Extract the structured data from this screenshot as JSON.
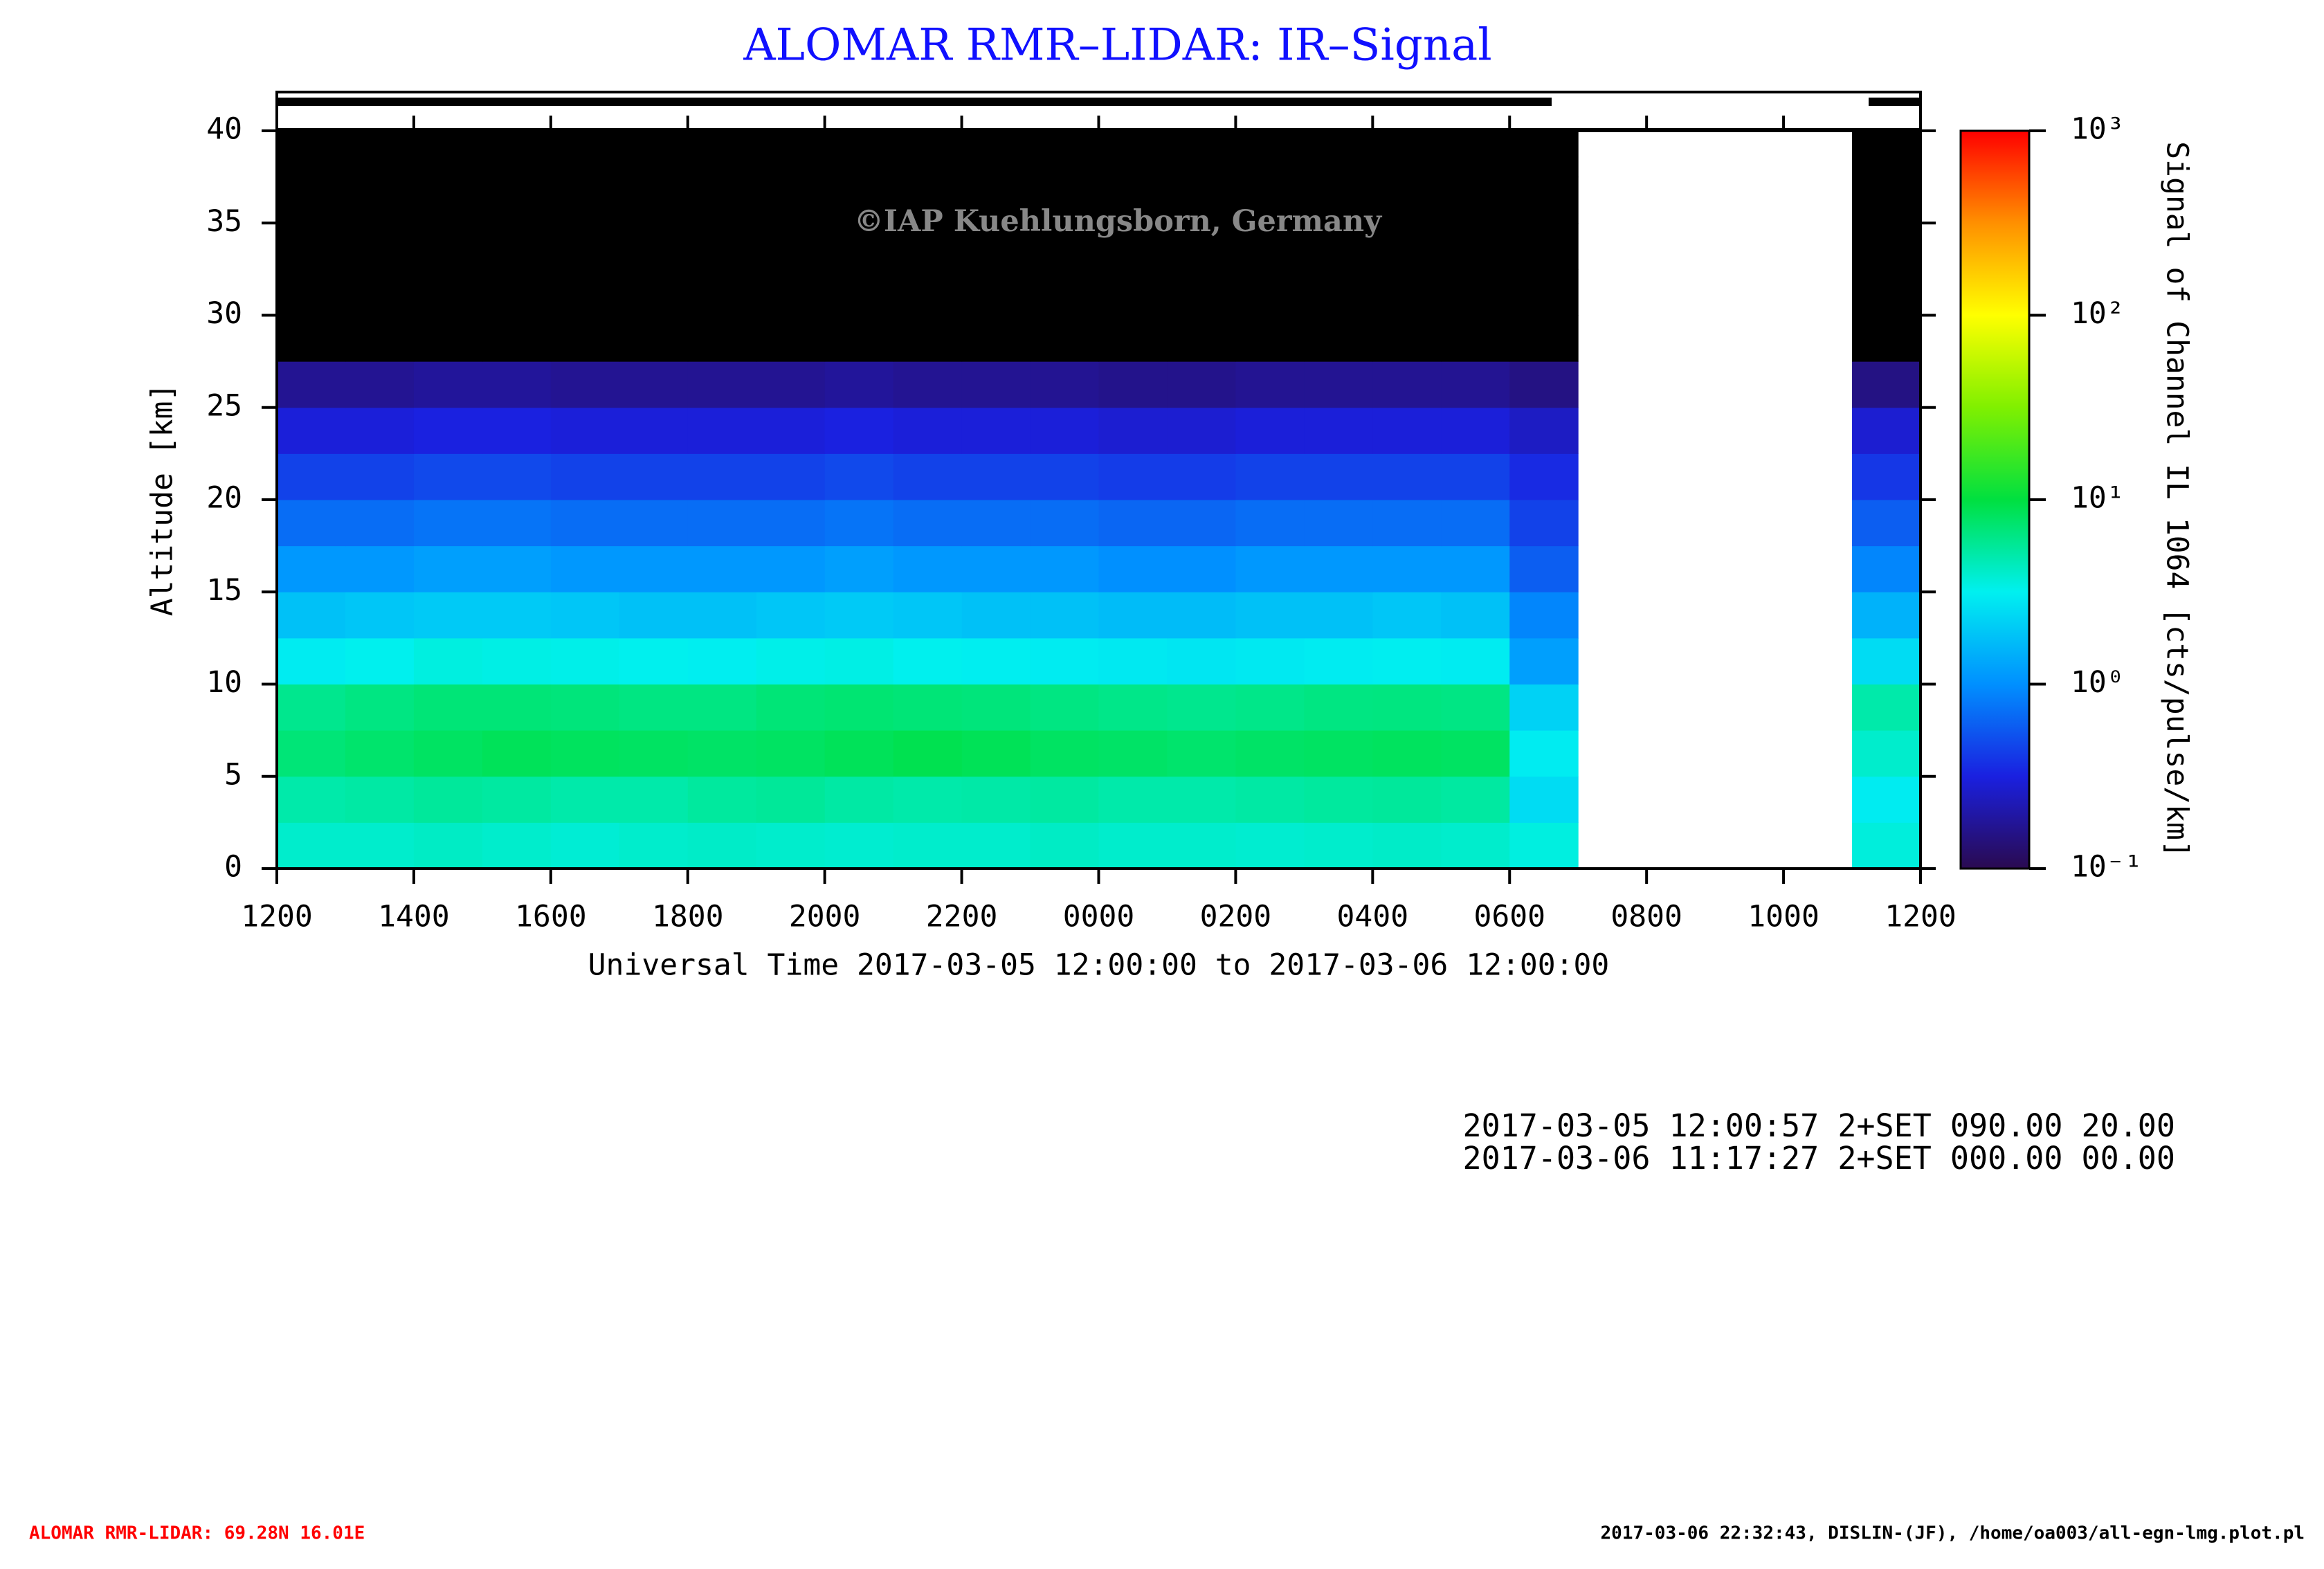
{
  "chart_data": {
    "type": "heatmap",
    "title": "ALOMAR RMR–LIDAR: IR–Signal",
    "watermark": "©IAP Kuehlungsborn, Germany",
    "x_label": "Universal Time 2017-03-05 12:00:00 to 2017-03-06 12:00:00",
    "y_label": "Altitude [km]",
    "colorbar_label": "Signal of Channel IL 1064 [cts/pulse/km]",
    "xlim": [
      0,
      24
    ],
    "xticks": [
      {
        "value": 0,
        "label": "1200"
      },
      {
        "value": 2,
        "label": "1400"
      },
      {
        "value": 4,
        "label": "1600"
      },
      {
        "value": 6,
        "label": "1800"
      },
      {
        "value": 8,
        "label": "2000"
      },
      {
        "value": 10,
        "label": "2200"
      },
      {
        "value": 12,
        "label": "0000"
      },
      {
        "value": 14,
        "label": "0200"
      },
      {
        "value": 16,
        "label": "0400"
      },
      {
        "value": 18,
        "label": "0600"
      },
      {
        "value": 20,
        "label": "0800"
      },
      {
        "value": 22,
        "label": "1000"
      },
      {
        "value": 24,
        "label": "1200"
      }
    ],
    "ylim": [
      0,
      40
    ],
    "yticks": [
      0,
      5,
      10,
      15,
      20,
      25,
      30,
      35,
      40
    ],
    "clim": [
      0.1,
      1000
    ],
    "log_color": true,
    "cticks": [
      {
        "value": 0.1,
        "label": "10⁻¹"
      },
      {
        "value": 1,
        "label": "10⁰"
      },
      {
        "value": 10,
        "label": "10¹"
      },
      {
        "value": 100,
        "label": "10²"
      },
      {
        "value": 1000,
        "label": "10³"
      }
    ],
    "colormap": [
      "#2a0a50",
      "#1a20e0",
      "#0090ff",
      "#00f0f0",
      "#00e040",
      "#80f000",
      "#ffff00",
      "#ff9000",
      "#ff0000"
    ],
    "under_color": "#000000",
    "xbins": [
      0,
      1,
      2,
      3,
      4,
      5,
      6,
      7,
      8,
      9,
      10,
      11,
      12,
      13,
      14,
      15,
      16,
      17,
      18,
      19,
      20,
      21,
      22,
      23,
      24
    ],
    "ybins": [
      0,
      2.5,
      5,
      7.5,
      10,
      12.5,
      15,
      17.5,
      20,
      22.5,
      25,
      27.5,
      30,
      32.5,
      35,
      37.5,
      40
    ],
    "z": [
      [
        4,
        4,
        4.2,
        4,
        3.8,
        4,
        4.1,
        4,
        3.9,
        4,
        4,
        4.2,
        4,
        4,
        3.9,
        4,
        4.1,
        4,
        3.5,
        null,
        null,
        null,
        null,
        3.6
      ],
      [
        5,
        5.2,
        5.5,
        5.3,
        5,
        5,
        5.4,
        5.6,
        5.2,
        5,
        5.1,
        5.3,
        5,
        5,
        5.2,
        5.4,
        5.5,
        5.3,
        2.5,
        null,
        null,
        null,
        null,
        3
      ],
      [
        7,
        7.5,
        8,
        8.5,
        8.2,
        8,
        7.8,
        8,
        8.5,
        9,
        8.6,
        8,
        7.8,
        7.5,
        7.8,
        8,
        8.2,
        8,
        3,
        null,
        null,
        null,
        null,
        4
      ],
      [
        6,
        6.5,
        7,
        7,
        6.8,
        6.5,
        6.5,
        7,
        7.2,
        7,
        6.8,
        6.5,
        6.2,
        6,
        6.2,
        6.5,
        6.6,
        6.4,
        2.2,
        null,
        null,
        null,
        null,
        5
      ],
      [
        3,
        3.2,
        3.5,
        3.4,
        3.3,
        3.2,
        3.1,
        3.3,
        3.4,
        3.2,
        3.1,
        3,
        2.9,
        2.8,
        2.9,
        3,
        3.1,
        3,
        1.2,
        null,
        null,
        null,
        null,
        2.5
      ],
      [
        1.8,
        1.9,
        2,
        2,
        1.9,
        1.8,
        1.8,
        1.9,
        2,
        1.9,
        1.8,
        1.8,
        1.7,
        1.7,
        1.8,
        1.8,
        1.9,
        1.8,
        0.9,
        null,
        null,
        null,
        null,
        1.5
      ],
      [
        1.1,
        1.1,
        1.2,
        1.2,
        1.1,
        1.1,
        1.1,
        1.1,
        1.2,
        1.1,
        1.1,
        1.1,
        1,
        1,
        1.1,
        1.1,
        1.1,
        1.1,
        0.6,
        null,
        null,
        null,
        null,
        0.9
      ],
      [
        0.7,
        0.7,
        0.75,
        0.75,
        0.7,
        0.7,
        0.7,
        0.7,
        0.75,
        0.7,
        0.7,
        0.7,
        0.65,
        0.65,
        0.7,
        0.7,
        0.7,
        0.7,
        0.45,
        null,
        null,
        null,
        null,
        0.6
      ],
      [
        0.45,
        0.45,
        0.48,
        0.48,
        0.45,
        0.45,
        0.45,
        0.45,
        0.48,
        0.45,
        0.45,
        0.45,
        0.42,
        0.42,
        0.45,
        0.45,
        0.45,
        0.45,
        0.35,
        null,
        null,
        null,
        null,
        0.4
      ],
      [
        0.3,
        0.3,
        0.32,
        0.32,
        0.3,
        0.3,
        0.3,
        0.3,
        0.32,
        0.3,
        0.3,
        0.3,
        0.28,
        0.28,
        0.3,
        0.3,
        0.3,
        0.3,
        0.25,
        null,
        null,
        null,
        null,
        0.28
      ],
      [
        0.17,
        0.17,
        0.18,
        0.18,
        0.17,
        0.17,
        0.17,
        0.17,
        0.18,
        0.17,
        0.17,
        0.17,
        0.16,
        0.16,
        0.17,
        0.17,
        0.17,
        0.17,
        0.15,
        null,
        null,
        null,
        null,
        0.15
      ],
      [
        0.09,
        0.09,
        0.09,
        0.09,
        0.09,
        0.09,
        0.09,
        0.09,
        0.09,
        0.09,
        0.09,
        0.09,
        0.09,
        0.09,
        0.09,
        0.09,
        0.09,
        0.09,
        0.09,
        null,
        null,
        null,
        null,
        0.09
      ],
      [
        0.05,
        0.05,
        0.05,
        0.05,
        0.05,
        0.05,
        0.05,
        0.05,
        0.05,
        0.05,
        0.05,
        0.05,
        0.05,
        0.05,
        0.05,
        0.05,
        0.05,
        0.05,
        0.05,
        null,
        null,
        null,
        null,
        0.05
      ],
      [
        0.05,
        0.05,
        0.05,
        0.05,
        0.05,
        0.05,
        0.05,
        0.05,
        0.05,
        0.05,
        0.05,
        0.05,
        0.05,
        0.05,
        0.05,
        0.05,
        0.05,
        0.05,
        0.05,
        null,
        null,
        null,
        null,
        0.05
      ],
      [
        0.05,
        0.05,
        0.05,
        0.05,
        0.05,
        0.05,
        0.05,
        0.05,
        0.05,
        0.05,
        0.05,
        0.05,
        0.05,
        0.05,
        0.05,
        0.05,
        0.05,
        0.05,
        0.05,
        null,
        null,
        null,
        null,
        0.05
      ],
      [
        0.05,
        0.05,
        0.05,
        0.05,
        0.05,
        0.05,
        0.05,
        0.05,
        0.05,
        0.05,
        0.05,
        0.05,
        0.05,
        0.05,
        0.05,
        0.05,
        0.05,
        0.05,
        0.05,
        null,
        null,
        null,
        null,
        0.05
      ]
    ],
    "info_lines": [
      "2017-03-05 12:00:57 2+SET 090.00 20.00",
      "2017-03-06 11:17:27 2+SET 000.00 00.00"
    ],
    "footer_left": "ALOMAR RMR-LIDAR: 69.28N 16.01E",
    "footer_right": "2017-03-06 22:32:43, DISLIN-(JF), /home/oa003/all-egn-lmg.plot.pl"
  }
}
